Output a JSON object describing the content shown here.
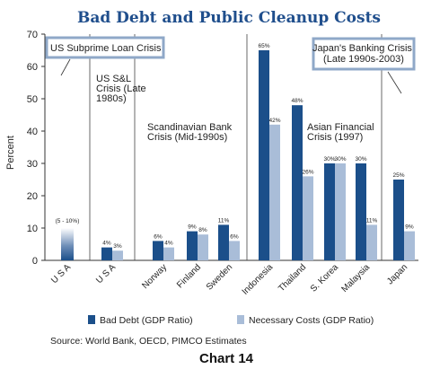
{
  "chart_data": {
    "type": "bar",
    "title": "Bad Debt and Public Cleanup Costs",
    "ylabel": "Percent",
    "xlabel": "",
    "ylim": [
      0,
      70
    ],
    "yticks": [
      "0",
      "10",
      "20",
      "30",
      "40",
      "50",
      "60",
      "70"
    ],
    "categories": [
      "U S A",
      "U S A",
      "Norway",
      "Finland",
      "Sweden",
      "Indonesia",
      "Thailand",
      "S. Korea",
      "Malaysia",
      "Japan"
    ],
    "series": [
      {
        "name": "Bad Debt (GDP Ratio)",
        "color": "#1b4f8a",
        "values": [
          null,
          4,
          6,
          9,
          11,
          65,
          48,
          30,
          30,
          25
        ],
        "labels": [
          "",
          "4%",
          "6%",
          "9%",
          "11%",
          "65%",
          "48%",
          "30%",
          "30%",
          "25%"
        ]
      },
      {
        "name": "Necessary Costs (GDP Ratio)",
        "color": "#a9bdd8",
        "values": [
          null,
          3,
          4,
          8,
          6,
          42,
          26,
          30,
          11,
          9
        ],
        "labels": [
          "",
          "3%",
          "4%",
          "8%",
          "6%",
          "42%",
          "26%",
          "30%",
          "11%",
          "9%"
        ]
      }
    ],
    "range_bar": {
      "category_index": 0,
      "range": [
        5,
        10
      ],
      "label": "(5 - 10%)"
    },
    "grid": false,
    "legend": "bottom"
  },
  "annotations": {
    "us_subprime": "US Subprime Loan Crisis",
    "us_sl": [
      "US S&L",
      "Crisis (Late",
      "1980s)"
    ],
    "scandinavian": [
      "Scandinavian Bank",
      "Crisis (Mid-1990s)"
    ],
    "asian": [
      "Asian Financial",
      "Crisis (1997)"
    ],
    "japan": [
      "Japan's Banking Crisis",
      "(Late 1990s-2003)"
    ]
  },
  "legend": {
    "items": [
      {
        "label": "Bad Debt (GDP Ratio)",
        "color": "#1b4f8a"
      },
      {
        "label": "Necessary Costs (GDP Ratio)",
        "color": "#a9bdd8"
      }
    ]
  },
  "source": "Source: World Bank, OECD, PIMCO Estimates",
  "caption": "Chart 14"
}
